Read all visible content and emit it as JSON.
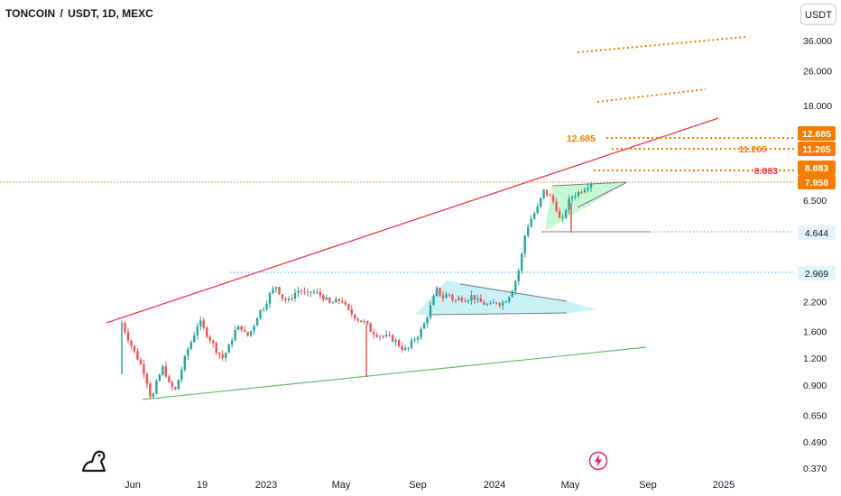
{
  "header": {
    "symbol": "TONCOIN",
    "quote": "USDT",
    "interval": "1D",
    "exchange": "MEXC",
    "currency_button": "USDT"
  },
  "colors": {
    "candle_up": "#26a69a",
    "candle_down": "#ef5350",
    "resistance_line": "#f23645",
    "support_line": "#66bb6a",
    "orange_level": "#f57c00",
    "blue_level": "#42a5f5",
    "triangle_fill": "#b2ebf2",
    "flag_fill": "#b9f6ca",
    "tag_orange": "#f57c00",
    "tag_blue_bg": "#e3f2fd",
    "tag_teal_bg": "#e0f7fa"
  },
  "chart_data": {
    "type": "candlestick",
    "scale": "log",
    "price_axis": {
      "ticks": [
        "36.000",
        "26.000",
        "18.000",
        "6.500",
        "2.200",
        "1.600",
        "1.200",
        "0.900",
        "0.650",
        "0.490",
        "0.370"
      ],
      "tick_values": [
        36,
        26,
        18,
        6.5,
        2.2,
        1.6,
        1.2,
        0.9,
        0.65,
        0.49,
        0.37
      ]
    },
    "time_axis": {
      "ticks": [
        "Jun",
        "19",
        "2023",
        "May",
        "Sep",
        "2024",
        "May",
        "Sep",
        "2025"
      ]
    },
    "tags": [
      {
        "value": "12.685",
        "style": "orange"
      },
      {
        "value": "11.265",
        "style": "orange"
      },
      {
        "value": "8.883",
        "style": "orange"
      },
      {
        "value": "7.958",
        "style": "orange"
      },
      {
        "value": "4.644",
        "style": "blue"
      },
      {
        "value": "2.969",
        "style": "teal"
      }
    ],
    "level_labels": [
      {
        "text": "12.685",
        "color": "orange"
      },
      {
        "text": "11.265",
        "color": "orange"
      },
      {
        "text": "8.883",
        "color": "red"
      }
    ],
    "price_path": [
      [
        0.0,
        1.75
      ],
      [
        0.01,
        1.5
      ],
      [
        0.02,
        1.3
      ],
      [
        0.03,
        1.15
      ],
      [
        0.04,
        1.0
      ],
      [
        0.05,
        0.76
      ],
      [
        0.06,
        0.95
      ],
      [
        0.07,
        1.1
      ],
      [
        0.08,
        0.9
      ],
      [
        0.09,
        0.85
      ],
      [
        0.1,
        1.05
      ],
      [
        0.11,
        1.3
      ],
      [
        0.12,
        1.5
      ],
      [
        0.13,
        1.8
      ],
      [
        0.14,
        1.6
      ],
      [
        0.15,
        1.45
      ],
      [
        0.16,
        1.3
      ],
      [
        0.17,
        1.2
      ],
      [
        0.18,
        1.35
      ],
      [
        0.19,
        1.6
      ],
      [
        0.2,
        1.7
      ],
      [
        0.21,
        1.5
      ],
      [
        0.22,
        1.65
      ],
      [
        0.23,
        1.95
      ],
      [
        0.24,
        2.1
      ],
      [
        0.25,
        2.4
      ],
      [
        0.26,
        2.6
      ],
      [
        0.27,
        2.3
      ],
      [
        0.28,
        2.2
      ],
      [
        0.29,
        2.4
      ],
      [
        0.3,
        2.5
      ],
      [
        0.31,
        2.35
      ],
      [
        0.32,
        2.45
      ],
      [
        0.33,
        2.4
      ],
      [
        0.34,
        2.3
      ],
      [
        0.35,
        2.15
      ],
      [
        0.36,
        2.2
      ],
      [
        0.37,
        2.25
      ],
      [
        0.38,
        2.0
      ],
      [
        0.39,
        1.9
      ],
      [
        0.4,
        1.8
      ],
      [
        0.41,
        1.75
      ],
      [
        0.42,
        1.6
      ],
      [
        0.43,
        1.55
      ],
      [
        0.44,
        1.52
      ],
      [
        0.45,
        1.5
      ],
      [
        0.46,
        1.45
      ],
      [
        0.47,
        1.35
      ],
      [
        0.48,
        1.3
      ],
      [
        0.49,
        1.45
      ],
      [
        0.5,
        1.55
      ],
      [
        0.51,
        1.75
      ],
      [
        0.52,
        2.1
      ],
      [
        0.53,
        2.5
      ],
      [
        0.54,
        2.3
      ],
      [
        0.55,
        2.4
      ],
      [
        0.56,
        2.2
      ],
      [
        0.57,
        2.3
      ],
      [
        0.58,
        2.25
      ],
      [
        0.59,
        2.35
      ],
      [
        0.6,
        2.2
      ],
      [
        0.61,
        2.15
      ],
      [
        0.62,
        2.1
      ],
      [
        0.63,
        2.2
      ],
      [
        0.64,
        2.15
      ],
      [
        0.65,
        2.3
      ],
      [
        0.66,
        2.6
      ],
      [
        0.67,
        3.2
      ],
      [
        0.68,
        4.7
      ],
      [
        0.69,
        5.4
      ],
      [
        0.7,
        6.0
      ],
      [
        0.71,
        7.2
      ],
      [
        0.72,
        6.8
      ],
      [
        0.73,
        6.2
      ],
      [
        0.74,
        5.0
      ],
      [
        0.75,
        6.3
      ],
      [
        0.76,
        6.9
      ],
      [
        0.77,
        7.1
      ],
      [
        0.78,
        7.5
      ],
      [
        0.79,
        7.9
      ]
    ]
  },
  "watermark": {
    "logo": "tradingview-dino-logo",
    "flash": "flash-icon"
  }
}
